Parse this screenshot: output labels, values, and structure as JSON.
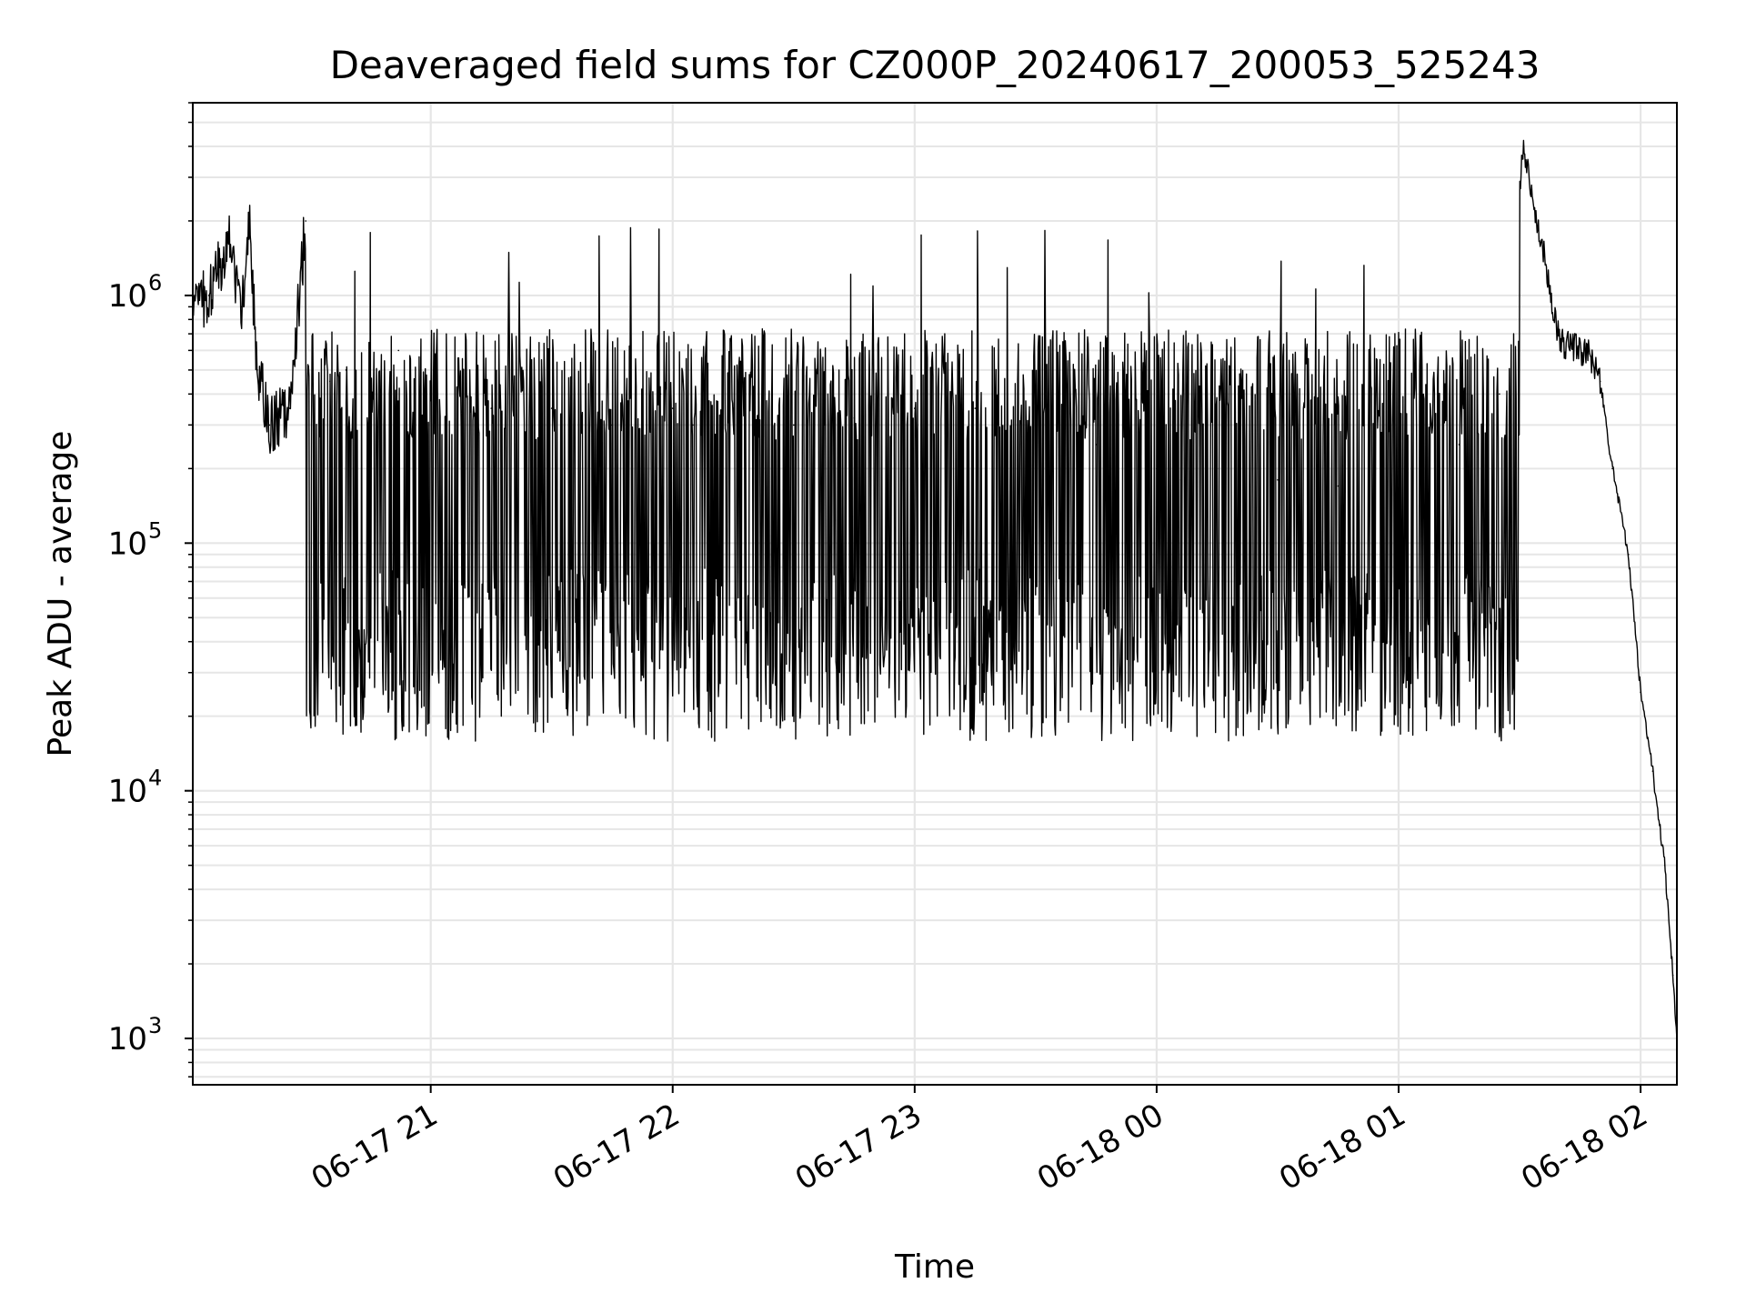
{
  "chart_data": {
    "type": "line",
    "title": "Deaveraged field sums for CZ000P_20240617_200053_525243",
    "xlabel": "Time",
    "ylabel": "Peak ADU - average",
    "y_scale": "log",
    "grid": true,
    "x_range": [
      "2024-06-17 20:01",
      "2024-06-18 02:09"
    ],
    "ylim": [
      650,
      6000000
    ],
    "x_ticks": [
      {
        "time": "2024-06-17 21:00",
        "label": "06-17 21"
      },
      {
        "time": "2024-06-17 22:00",
        "label": "06-17 22"
      },
      {
        "time": "2024-06-17 23:00",
        "label": "06-17 23"
      },
      {
        "time": "2024-06-18 00:00",
        "label": "06-18 00"
      },
      {
        "time": "2024-06-18 01:00",
        "label": "06-18 01"
      },
      {
        "time": "2024-06-18 02:00",
        "label": "06-18 02"
      }
    ],
    "y_ticks": [
      {
        "value": 1000,
        "base": "10",
        "exp": "3"
      },
      {
        "value": 10000,
        "base": "10",
        "exp": "4"
      },
      {
        "value": 100000,
        "base": "10",
        "exp": "5"
      },
      {
        "value": 1000000,
        "base": "10",
        "exp": "6"
      }
    ],
    "line_color": "#000000",
    "grid_color": "#e6e6e6",
    "series": [
      {
        "x": [
          "2024-06-17 20:01",
          "2024-06-17 20:05",
          "2024-06-17 20:10",
          "2024-06-17 20:13",
          "2024-06-17 20:15",
          "2024-06-17 20:17",
          "2024-06-17 20:20",
          "2024-06-17 20:25",
          "2024-06-17 20:29",
          "2024-06-17 20:35",
          "2024-06-17 20:39",
          "2024-06-17 20:45",
          "2024-06-17 20:52",
          "2024-06-17 21:00",
          "2024-06-17 21:15",
          "2024-06-17 21:30",
          "2024-06-17 21:45",
          "2024-06-17 21:57",
          "2024-06-17 22:00",
          "2024-06-17 22:05",
          "2024-06-17 22:15",
          "2024-06-17 22:30",
          "2024-06-17 22:45",
          "2024-06-17 23:00",
          "2024-06-17 23:15",
          "2024-06-17 23:30",
          "2024-06-17 23:45",
          "2024-06-18 00:00",
          "2024-06-18 00:06",
          "2024-06-18 00:15",
          "2024-06-18 00:30",
          "2024-06-18 00:45",
          "2024-06-18 01:00",
          "2024-06-18 01:15",
          "2024-06-18 01:25",
          "2024-06-18 01:31",
          "2024-06-18 01:40",
          "2024-06-18 01:47",
          "2024-06-18 01:50",
          "2024-06-18 01:53",
          "2024-06-18 01:57",
          "2024-06-18 02:00",
          "2024-06-18 02:03",
          "2024-06-18 02:06",
          "2024-06-18 02:08",
          "2024-06-18 02:09"
        ],
        "y": [
          850000,
          1000000,
          1700000,
          900000,
          2000000,
          500000,
          300000,
          350000,
          2000000,
          450000,
          500000,
          500000,
          600000,
          400000,
          350000,
          350000,
          300000,
          400000,
          350000,
          300000,
          350000,
          300000,
          320000,
          350000,
          350000,
          300000,
          250000,
          200000,
          180000,
          200000,
          180000,
          170000,
          200000,
          250000,
          400000,
          4000000,
          650000,
          580000,
          450000,
          200000,
          90000,
          25000,
          12000,
          5000,
          1800,
          1000
        ]
      }
    ]
  }
}
